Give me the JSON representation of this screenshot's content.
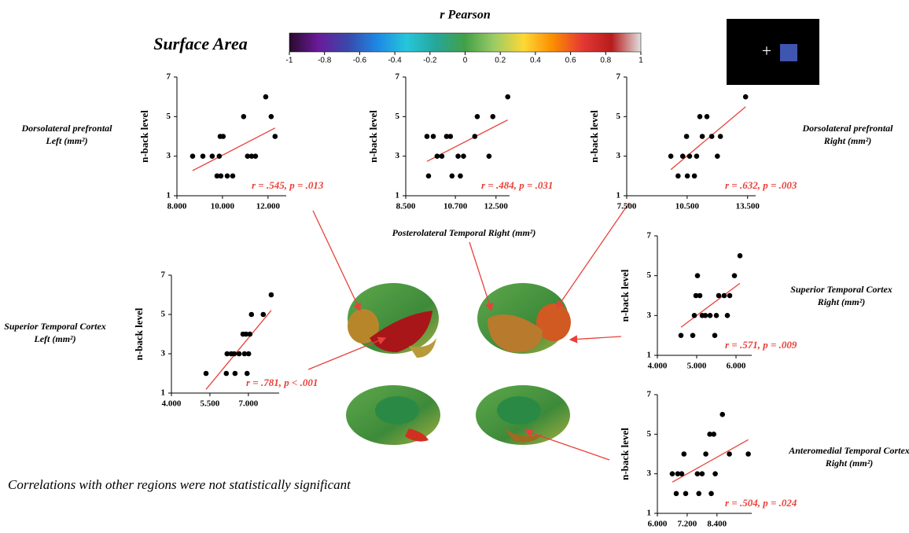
{
  "figure": {
    "title": "Surface Area",
    "note": "Correlations with other regions were not statistically significant",
    "stimulus": "+"
  },
  "chart_data": [
    {
      "type": "colorbar",
      "title": "r Pearson",
      "xlim": [
        -1,
        1
      ],
      "xticks": [
        -1,
        -0.8,
        -0.6,
        -0.4,
        -0.2,
        0,
        0.2,
        0.4,
        0.6,
        0.8,
        1
      ],
      "colors": [
        "#2a0a2e",
        "#6a1b9a",
        "#3949ab",
        "#1e88e5",
        "#26c6da",
        "#26a69a",
        "#43a047",
        "#9ccc65",
        "#fdd835",
        "#fb8c00",
        "#e53935",
        "#b71c1c",
        "#e0e0e0"
      ]
    },
    {
      "type": "scatter",
      "region": [
        "Dorsolateral prefrontal",
        "Left (mm²)"
      ],
      "ylabel": "n-back level",
      "annotation": "r = .545, p = .013",
      "x": [
        8690,
        9140,
        9550,
        9860,
        9760,
        9930,
        9900,
        10030,
        10210,
        10450,
        10930,
        11100,
        11280,
        11450,
        11900,
        12140,
        12310
      ],
      "y": [
        3,
        3,
        3,
        3,
        2,
        2,
        4,
        4,
        2,
        2,
        5,
        3,
        3,
        3,
        6,
        5,
        4
      ],
      "xlim": [
        8000,
        12800
      ],
      "ylim": [
        1,
        7
      ],
      "xticks": [
        {
          "value": 8000,
          "label": "8.000"
        },
        {
          "value": 10000,
          "label": "10.000"
        },
        {
          "value": 12000,
          "label": "12.000"
        }
      ],
      "yticks": [
        1,
        3,
        5,
        7
      ],
      "color": "#000000",
      "fit_color": "#e8413a"
    },
    {
      "type": "scatter",
      "region": [
        "Posterolateral Temporal Right (mm²)"
      ],
      "ylabel": "n-back level",
      "annotation": "r = .484, p = .031",
      "x": [
        9510,
        9440,
        9720,
        9890,
        10100,
        10310,
        10480,
        10550,
        10820,
        10920,
        11060,
        11560,
        11670,
        12190,
        12360,
        13020
      ],
      "y": [
        2,
        4,
        4,
        3,
        3,
        4,
        4,
        2,
        3,
        2,
        3,
        4,
        5,
        3,
        5,
        6
      ],
      "xlim": [
        8500,
        13100
      ],
      "ylim": [
        1,
        7
      ],
      "xticks": [
        {
          "value": 8500,
          "label": "8.500"
        },
        {
          "value": 10700,
          "label": "10.700"
        },
        {
          "value": 12500,
          "label": "12.500"
        }
      ],
      "yticks": [
        1,
        3,
        5,
        7
      ],
      "color": "#000000",
      "fit_color": "#e8413a"
    },
    {
      "type": "scatter",
      "region": [
        "Dorsolateral prefrontal",
        "Right (mm²)"
      ],
      "ylabel": "n-back level",
      "annotation": "r = .632, p = .003",
      "x": [
        9690,
        10050,
        10280,
        10470,
        10510,
        10620,
        10860,
        10970,
        11130,
        11250,
        11480,
        11720,
        12150,
        12000,
        13400
      ],
      "y": [
        3,
        2,
        3,
        4,
        2,
        3,
        2,
        3,
        5,
        4,
        5,
        4,
        4,
        3,
        6
      ],
      "xlim": [
        7500,
        13900
      ],
      "ylim": [
        1,
        7
      ],
      "xticks": [
        {
          "value": 7500,
          "label": "7.500"
        },
        {
          "value": 10500,
          "label": "10.500"
        },
        {
          "value": 13500,
          "label": "13.500"
        }
      ],
      "yticks": [
        1,
        3,
        5,
        7
      ],
      "color": "#000000",
      "fit_color": "#e8413a"
    },
    {
      "type": "scatter",
      "region": [
        "Superior Temporal Cortex",
        "Left (mm²)"
      ],
      "ylabel": "n-back level",
      "annotation": "r = .781, p < .001",
      "x": [
        5350,
        6140,
        6170,
        6330,
        6450,
        6480,
        6640,
        6790,
        6850,
        6910,
        6950,
        7010,
        7060,
        7120,
        7580,
        7890
      ],
      "y": [
        2,
        2,
        3,
        3,
        3,
        2,
        3,
        4,
        3,
        4,
        2,
        3,
        4,
        5,
        5,
        6
      ],
      "xlim": [
        4000,
        8200
      ],
      "ylim": [
        1,
        7
      ],
      "xticks": [
        {
          "value": 4000,
          "label": "4.000"
        },
        {
          "value": 5500,
          "label": "5.500"
        },
        {
          "value": 7000,
          "label": "7.000"
        }
      ],
      "yticks": [
        1,
        3,
        5,
        7
      ],
      "color": "#000000",
      "fit_color": "#e8413a"
    },
    {
      "type": "scatter",
      "region": [
        "Superior Temporal Cortex",
        "Right (mm²)"
      ],
      "ylabel": "n-back level",
      "annotation": "r = .571, p = .009",
      "x": [
        4600,
        4900,
        4940,
        4980,
        5020,
        5080,
        5140,
        5220,
        5340,
        5460,
        5500,
        5560,
        5700,
        5780,
        5840,
        5960,
        6100
      ],
      "y": [
        2,
        2,
        3,
        4,
        5,
        4,
        3,
        3,
        3,
        2,
        3,
        4,
        4,
        3,
        4,
        5,
        6
      ],
      "xlim": [
        4000,
        6400
      ],
      "ylim": [
        1,
        7
      ],
      "xticks": [
        {
          "value": 4000,
          "label": "4.000"
        },
        {
          "value": 5000,
          "label": "5.000"
        },
        {
          "value": 6000,
          "label": "6.000"
        }
      ],
      "yticks": [
        1,
        3,
        5,
        7
      ],
      "color": "#000000",
      "fit_color": "#e8413a"
    },
    {
      "type": "scatter",
      "region": [
        "Anteromedial Temporal Cortex",
        "Right (mm²)"
      ],
      "ylabel": "n-back level",
      "annotation": "r = .504, p = .024",
      "x": [
        6600,
        6760,
        6820,
        6980,
        7070,
        7140,
        7610,
        7670,
        7800,
        7950,
        8110,
        8270,
        8330,
        8170,
        8620,
        8900,
        9660
      ],
      "y": [
        3,
        2,
        3,
        3,
        4,
        2,
        3,
        2,
        3,
        4,
        5,
        5,
        3,
        2,
        6,
        4,
        4
      ],
      "xlim": [
        6000,
        9800
      ],
      "ylim": [
        1,
        7
      ],
      "xticks": [
        {
          "value": 6000,
          "label": "6.000"
        },
        {
          "value": 7200,
          "label": "7.200"
        },
        {
          "value": 8400,
          "label": "8.400"
        }
      ],
      "yticks": [
        1,
        3,
        5,
        7
      ],
      "color": "#000000",
      "fit_color": "#e8413a"
    }
  ]
}
